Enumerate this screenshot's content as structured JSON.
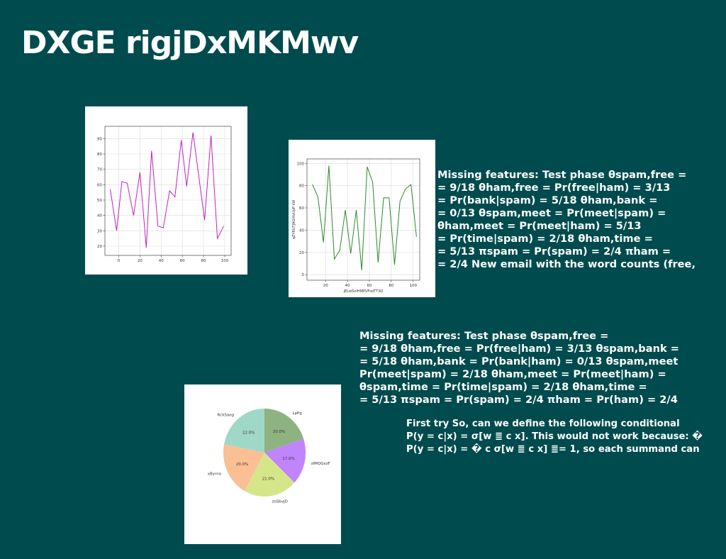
{
  "title": "DXGE rigjDxMKMwv",
  "text_block_1": [
    "Missing features: Test phase θspam,free =",
    "= 9/18 θham,free = Pr(free|ham) = 3/13",
    "= Pr(bank|spam) = 5/18 θham,bank =",
    "= 0/13 θspam,meet = Pr(meet|spam) =",
    "θham,meet = Pr(meet|ham) = 5/13",
    "= Pr(time|spam) = 2/18 θham,time =",
    "= 5/13 πspam = Pr(spam) = 2/4 πham =",
    "= 2/4 New email with the word counts (free,"
  ],
  "text_block_2": [
    "Missing features: Test phase θspam,free =",
    "= 9/18 θham,free = Pr(free|ham) = 3/13 θspam,bank =",
    "= 5/18 θham,bank = Pr(bank|ham) = 0/13 θspam,meet",
    "Pr(meet|spam) = 2/18 θham,meet = Pr(meet|ham) =",
    "θspam,time = Pr(time|spam) = 2/18 θham,time =",
    "= 5/13 πspam = Pr(spam) = 2/4 πham = Pr(ham) = 2/4"
  ],
  "text_block_3": [
    "First try So, can we define the following conditional",
    "P(y = c|x) = σ[w ≣ c x]. This would not work because: �",
    "P(y = c|x) = � c σ[w ≣ c x] ≣= 1, so each summand can"
  ],
  "chart_data": [
    {
      "type": "line",
      "color": "#c21fc2",
      "xlabel": "",
      "ylabel": "",
      "xlim": [
        -13,
        106
      ],
      "ylim": [
        14,
        98
      ],
      "xticks": [
        0,
        20,
        40,
        60,
        80,
        100
      ],
      "yticks": [
        20,
        30,
        40,
        50,
        60,
        70,
        80,
        90
      ],
      "grid": true,
      "x": [
        -8,
        -2,
        3,
        8,
        14,
        20,
        26,
        31,
        37,
        42,
        48,
        53,
        59,
        64,
        70,
        76,
        81,
        87,
        93,
        99
      ],
      "y": [
        57,
        30,
        62,
        61,
        40,
        68,
        19,
        82,
        33,
        32,
        56,
        52,
        89,
        59,
        94,
        63,
        37,
        92,
        25,
        33
      ]
    },
    {
      "type": "line",
      "color": "#2a8a2a",
      "xlabel": "jELwSnIHMPVFodTTXO",
      "ylabel": "qZYRUTJAGlHzUpP kW",
      "xlim": [
        3,
        106
      ],
      "ylim": [
        -5,
        104
      ],
      "xticks": [
        20,
        40,
        60,
        80,
        100
      ],
      "yticks": [
        0,
        20,
        40,
        60,
        80,
        100
      ],
      "grid": true,
      "x": [
        8,
        13,
        18,
        23,
        28,
        33,
        38,
        43,
        48,
        53,
        58,
        63,
        68,
        73,
        78,
        83,
        88,
        93,
        98,
        103
      ],
      "y": [
        81,
        70,
        29,
        98,
        14,
        22,
        58,
        19,
        58,
        4,
        97,
        83,
        11,
        69,
        69,
        9,
        66,
        77,
        81,
        34
      ]
    },
    {
      "type": "pie",
      "labels": [
        "LpPg",
        "sIMQGxzF",
        "zoSbvJD",
        "xByrno",
        "RckSaog"
      ],
      "values": [
        20.0,
        17.0,
        21.0,
        20.0,
        22.0
      ],
      "pct_labels": [
        "20.0%",
        "17.0%",
        "21.0%",
        "20.0%",
        "22.0%"
      ],
      "colors": [
        "#8fb380",
        "#c084fc",
        "#d5e68a",
        "#fbbf94",
        "#a0d8c8"
      ]
    }
  ]
}
